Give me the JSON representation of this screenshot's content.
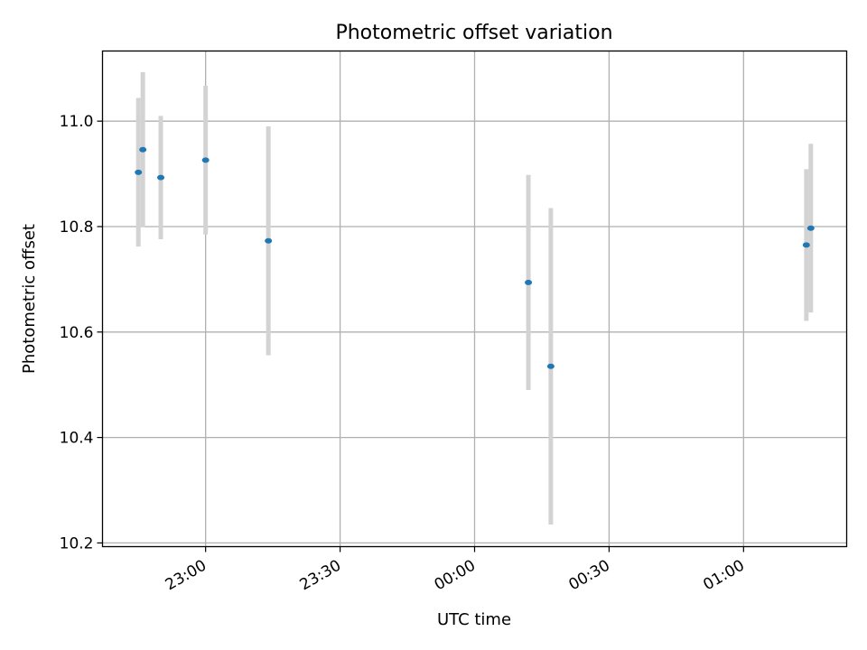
{
  "chart_data": {
    "type": "scatter",
    "title": "Photometric offset variation",
    "xlabel": "UTC time",
    "ylabel": "Photometric offset",
    "x_ticks": [
      "23:00",
      "23:30",
      "00:00",
      "00:30",
      "01:00"
    ],
    "y_ticks": [
      "10.2",
      "10.4",
      "10.6",
      "10.8",
      "11.0"
    ],
    "xlim": [
      "22:37",
      "01:23"
    ],
    "ylim": [
      10.193,
      11.133
    ],
    "grid": true,
    "colors": {
      "point": "#1f77b4",
      "errorbar": "#d3d3d3",
      "grid": "#b0b0b0"
    },
    "points": [
      {
        "time": "22:45",
        "value": 10.903,
        "error": 0.141
      },
      {
        "time": "22:46",
        "value": 10.946,
        "error": 0.147
      },
      {
        "time": "22:50",
        "value": 10.893,
        "error": 0.117
      },
      {
        "time": "23:00",
        "value": 10.926,
        "error": 0.141
      },
      {
        "time": "23:14",
        "value": 10.773,
        "error": 0.217
      },
      {
        "time": "00:12",
        "value": 10.694,
        "error": 0.204
      },
      {
        "time": "00:17",
        "value": 10.535,
        "error": 0.3
      },
      {
        "time": "01:14",
        "value": 10.765,
        "error": 0.144
      },
      {
        "time": "01:15",
        "value": 10.797,
        "error": 0.16
      }
    ]
  }
}
